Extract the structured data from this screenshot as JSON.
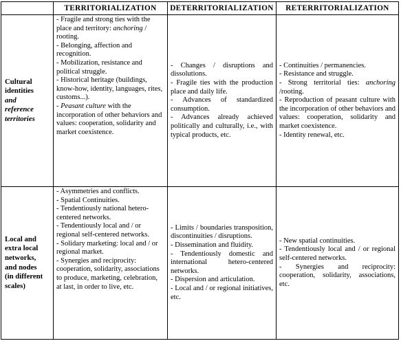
{
  "headers": {
    "corner": "",
    "territorialization": "TERRITORIALIZATION",
    "deterritorialization": "DETERRITORIALIZATION",
    "reterritorialization": "RETERRITORIALIZATION"
  },
  "rows": [
    {
      "label_lines": [
        {
          "text": "Cultural",
          "italic": false
        },
        {
          "text": "identities",
          "italic": false
        },
        {
          "text": "and",
          "italic": true
        },
        {
          "text": "reference",
          "italic": true
        },
        {
          "text": "territories",
          "italic": true
        }
      ],
      "territorialization": [
        "- Fragile and strong ties with the place and territory: anchoring / rooting.",
        "- Belonging, affection and recognition.",
        "- Mobilization, resistance and political struggle.",
        "- Historical heritage (buildings, know-how, identity, languages, rites, customs...).",
        "- Peasant culture with the incorporation of other behaviors and values: cooperation, solidarity and market coexistence."
      ],
      "deterritorialization": [
        "- Changes / disruptions and dissolutions.",
        "- Fragile ties with the production place and daily life.",
        "- Advances of standardized consumption.",
        "- Advances already achieved politically and culturally, i.e., with typical products, etc."
      ],
      "reterritorialization": [
        "- Continuities / permanencies.",
        "- Resistance and struggle.",
        "- Strong territorial ties: anchoring /rooting.",
        "- Reproduction of peasant culture with the incorporation of other behaviors and values: cooperation, solidarity and market coexistence.",
        "- Identity renewal, etc."
      ]
    },
    {
      "label_lines": [
        {
          "text": "Local and",
          "italic": false
        },
        {
          "text": "extra local",
          "italic": false
        },
        {
          "text": "networks,",
          "italic": false
        },
        {
          "text": "and nodes",
          "italic": false
        },
        {
          "text": "(in different",
          "italic": false
        },
        {
          "text": "scales)",
          "italic": false
        }
      ],
      "territorialization": [
        "- Asymmetries and conflicts.",
        "- Spatial Continuities.",
        "- Tendentiously national hetero-centered networks.",
        "- Tendentiously local and / or regional self-centered networks.",
        "- Solidary marketing: local and / or regional market.",
        "- Synergies and reciprocity: cooperation, solidarity, associations to produce, marketing, celebration, at last, in order to live, etc."
      ],
      "deterritorialization": [
        "- Limits / boundaries transposition, discontinuities / disruptions.",
        "- Dissemination and fluidity.",
        "- Tendentiously domestic and international hetero-centered networks.",
        "- Dispersion and articulation.",
        "- Local and / or regional initiatives, etc."
      ],
      "reterritorialization": [
        "- New spatial continuities.",
        "- Tendentiously local and / or regional self-centered networks.",
        "- Synergies and reciprocity: cooperation, solidarity, associations, etc."
      ]
    }
  ]
}
